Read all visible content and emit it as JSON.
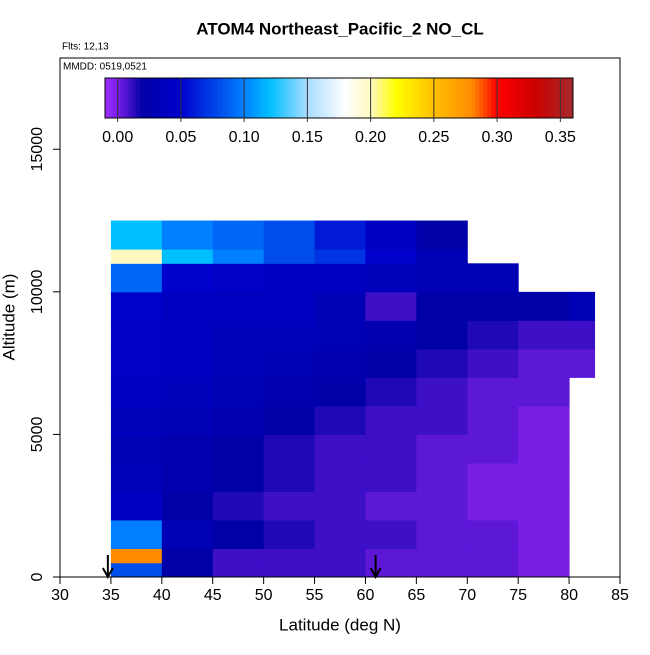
{
  "chart_data": {
    "type": "heatmap",
    "title": "ATOM4 Northeast_Pacific_2 NO_CL",
    "flights_label": "Flts: 12,13",
    "dates_label": "MMDD: 0519,0521",
    "xlabel": "Latitude (deg N)",
    "ylabel": "Altitude (m)",
    "xlim": [
      30,
      85
    ],
    "xticks": [
      30,
      35,
      40,
      45,
      50,
      55,
      60,
      65,
      70,
      75,
      80,
      85
    ],
    "ylim": [
      0,
      18200
    ],
    "yticks": [
      0,
      5000,
      10000,
      15000
    ],
    "xbins": [
      35,
      40,
      45,
      50,
      55,
      60,
      65,
      70,
      75,
      80,
      82.5
    ],
    "ybins": [
      0,
      500,
      1000,
      2000,
      3000,
      4000,
      5000,
      6000,
      7000,
      8000,
      9000,
      10000,
      11000,
      11500,
      12500
    ],
    "z": [
      [
        0.08,
        0.02,
        0.01,
        0.01,
        0.01,
        0.005,
        0.005,
        0.005,
        0.0,
        null
      ],
      [
        0.28,
        0.02,
        0.01,
        0.01,
        0.01,
        0.005,
        0.005,
        0.005,
        0.0,
        null
      ],
      [
        0.1,
        0.03,
        0.02,
        0.015,
        0.01,
        0.01,
        0.005,
        0.005,
        0.0,
        null
      ],
      [
        0.04,
        0.02,
        0.015,
        0.01,
        0.01,
        0.005,
        0.005,
        0.0,
        0.0,
        null
      ],
      [
        0.035,
        0.025,
        0.02,
        0.015,
        0.01,
        0.01,
        0.005,
        0.0,
        0.0,
        null
      ],
      [
        0.03,
        0.025,
        0.02,
        0.015,
        0.01,
        0.01,
        0.005,
        0.005,
        0.0,
        null
      ],
      [
        0.035,
        0.03,
        0.025,
        0.02,
        0.015,
        0.01,
        0.01,
        0.005,
        0.0,
        null
      ],
      [
        0.04,
        0.035,
        0.03,
        0.025,
        0.02,
        0.015,
        0.01,
        0.005,
        0.005,
        null
      ],
      [
        0.045,
        0.04,
        0.035,
        0.03,
        0.025,
        0.02,
        0.015,
        0.01,
        0.005,
        0.005
      ],
      [
        0.045,
        0.04,
        0.035,
        0.035,
        0.03,
        0.025,
        0.02,
        0.015,
        0.01,
        0.01
      ],
      [
        0.05,
        0.04,
        0.04,
        0.04,
        0.03,
        0.01,
        0.02,
        0.02,
        0.02,
        0.03
      ],
      [
        0.09,
        0.05,
        0.045,
        0.04,
        0.04,
        0.035,
        0.03,
        0.03,
        null,
        null
      ],
      [
        0.2,
        0.12,
        0.1,
        0.08,
        0.07,
        0.05,
        0.03,
        null,
        null,
        null
      ],
      [
        0.12,
        0.1,
        0.09,
        0.08,
        0.06,
        0.04,
        0.02,
        null,
        null,
        null
      ]
    ],
    "zlim": [
      -0.01,
      0.36
    ],
    "zticks": [
      {
        "value": 0,
        "label": "0.00"
      },
      {
        "value": 0.05,
        "label": "0.05"
      },
      {
        "value": 0.1,
        "label": "0.10"
      },
      {
        "value": 0.15,
        "label": "0.15"
      },
      {
        "value": 0.2,
        "label": "0.20"
      },
      {
        "value": 0.25,
        "label": "0.25"
      },
      {
        "value": 0.3,
        "label": "0.30"
      },
      {
        "value": 0.35,
        "label": "0.35"
      }
    ],
    "colorscale": [
      [
        -0.01,
        "#9b30ff"
      ],
      [
        0.0,
        "#7a1ee6"
      ],
      [
        0.02,
        "#0000a8"
      ],
      [
        0.05,
        "#0000cd"
      ],
      [
        0.1,
        "#0080ff"
      ],
      [
        0.12,
        "#00bfff"
      ],
      [
        0.15,
        "#a8dcff"
      ],
      [
        0.18,
        "#ffffff"
      ],
      [
        0.2,
        "#fff8c0"
      ],
      [
        0.22,
        "#ffff00"
      ],
      [
        0.25,
        "#ffc000"
      ],
      [
        0.28,
        "#ff8c00"
      ],
      [
        0.3,
        "#ff0000"
      ],
      [
        0.33,
        "#cd0000"
      ],
      [
        0.36,
        "#a52a2a"
      ]
    ],
    "arrows_lat": [
      34.7,
      61
    ]
  }
}
